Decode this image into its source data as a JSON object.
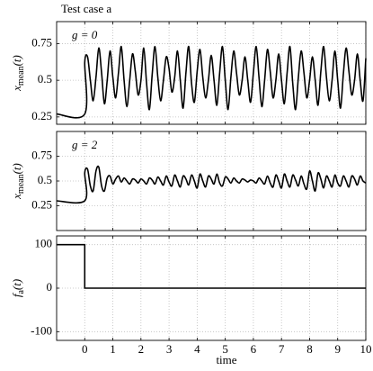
{
  "title": "Test case a",
  "chart_data": [
    {
      "type": "line",
      "annotation": "g = 0",
      "ylabel": {
        "base": "x",
        "sub": "mean",
        "rest": "(t)"
      },
      "xlim": [
        -1,
        10
      ],
      "xticks": [
        0,
        1,
        2,
        3,
        4,
        5,
        6,
        7,
        8,
        9,
        10
      ],
      "show_xtick_labels": false,
      "ylim": [
        0.2,
        0.9
      ],
      "yticks": [
        0.25,
        0.5,
        0.75
      ],
      "grid": true,
      "interpolation": "smooth",
      "x": [
        -1,
        0,
        0,
        0.1,
        0.2,
        0.3,
        0.4,
        0.5,
        0.6,
        0.7,
        0.8,
        0.9,
        1,
        1.1,
        1.2,
        1.3,
        1.4,
        1.5,
        1.6,
        1.7,
        1.8,
        1.9,
        2,
        2.1,
        2.2,
        2.3,
        2.4,
        2.5,
        2.6,
        2.7,
        2.8,
        2.9,
        3,
        3.1,
        3.2,
        3.3,
        3.4,
        3.5,
        3.6,
        3.7,
        3.8,
        3.9,
        4,
        4.1,
        4.2,
        4.3,
        4.4,
        4.5,
        4.6,
        4.7,
        4.8,
        4.9,
        5,
        5.1,
        5.2,
        5.3,
        5.4,
        5.5,
        5.6,
        5.7,
        5.8,
        5.9,
        6,
        6.1,
        6.2,
        6.3,
        6.4,
        6.5,
        6.6,
        6.7,
        6.8,
        6.9,
        7,
        7.1,
        7.2,
        7.3,
        7.4,
        7.5,
        7.6,
        7.7,
        7.8,
        7.9,
        8,
        8.1,
        8.2,
        8.3,
        8.4,
        8.5,
        8.6,
        8.7,
        8.8,
        8.9,
        9,
        9.1,
        9.2,
        9.3,
        9.4,
        9.5,
        9.6,
        9.7,
        9.8,
        9.9,
        10
      ],
      "series": [
        {
          "color": "#000000",
          "values": [
            0.27,
            0.27,
            0.62,
            0.66,
            0.5,
            0.36,
            0.52,
            0.72,
            0.55,
            0.34,
            0.5,
            0.7,
            0.52,
            0.38,
            0.55,
            0.73,
            0.5,
            0.32,
            0.5,
            0.68,
            0.56,
            0.4,
            0.5,
            0.72,
            0.48,
            0.3,
            0.54,
            0.73,
            0.52,
            0.36,
            0.5,
            0.66,
            0.58,
            0.42,
            0.52,
            0.7,
            0.5,
            0.31,
            0.55,
            0.73,
            0.48,
            0.35,
            0.56,
            0.71,
            0.52,
            0.38,
            0.5,
            0.67,
            0.5,
            0.33,
            0.55,
            0.73,
            0.5,
            0.3,
            0.52,
            0.7,
            0.55,
            0.4,
            0.5,
            0.66,
            0.5,
            0.35,
            0.55,
            0.73,
            0.52,
            0.32,
            0.5,
            0.71,
            0.56,
            0.38,
            0.5,
            0.68,
            0.5,
            0.34,
            0.55,
            0.73,
            0.48,
            0.3,
            0.52,
            0.7,
            0.55,
            0.38,
            0.5,
            0.66,
            0.5,
            0.33,
            0.56,
            0.73,
            0.52,
            0.36,
            0.5,
            0.7,
            0.5,
            0.31,
            0.54,
            0.72,
            0.56,
            0.4,
            0.5,
            0.68,
            0.5,
            0.36,
            0.65
          ]
        }
      ]
    },
    {
      "type": "line",
      "annotation": "g = 2",
      "ylabel": {
        "base": "x",
        "sub": "mean",
        "rest": "(t)"
      },
      "xlim": [
        -1,
        10
      ],
      "xticks": [
        0,
        1,
        2,
        3,
        4,
        5,
        6,
        7,
        8,
        9,
        10
      ],
      "show_xtick_labels": false,
      "ylim": [
        0,
        1
      ],
      "yticks": [
        0.25,
        0.5,
        0.75
      ],
      "grid": true,
      "interpolation": "smooth",
      "x": [
        -1,
        0,
        0,
        0.1,
        0.2,
        0.3,
        0.4,
        0.5,
        0.6,
        0.7,
        0.8,
        0.9,
        1,
        1.1,
        1.2,
        1.3,
        1.4,
        1.5,
        1.6,
        1.7,
        1.8,
        1.9,
        2,
        2.1,
        2.2,
        2.3,
        2.4,
        2.5,
        2.6,
        2.7,
        2.8,
        2.9,
        3,
        3.1,
        3.2,
        3.3,
        3.4,
        3.5,
        3.6,
        3.7,
        3.8,
        3.9,
        4,
        4.1,
        4.2,
        4.3,
        4.4,
        4.5,
        4.6,
        4.7,
        4.8,
        4.9,
        5,
        5.1,
        5.2,
        5.3,
        5.4,
        5.5,
        5.6,
        5.7,
        5.8,
        5.9,
        6,
        6.1,
        6.2,
        6.3,
        6.4,
        6.5,
        6.6,
        6.7,
        6.8,
        6.9,
        7,
        7.1,
        7.2,
        7.3,
        7.4,
        7.5,
        7.6,
        7.7,
        7.8,
        7.9,
        8,
        8.1,
        8.2,
        8.3,
        8.4,
        8.5,
        8.6,
        8.7,
        8.8,
        8.9,
        9,
        9.1,
        9.2,
        9.3,
        9.4,
        9.5,
        9.6,
        9.7,
        9.8,
        9.9,
        10
      ],
      "series": [
        {
          "color": "#000000",
          "values": [
            0.3,
            0.3,
            0.58,
            0.62,
            0.45,
            0.4,
            0.6,
            0.64,
            0.45,
            0.4,
            0.53,
            0.55,
            0.47,
            0.52,
            0.55,
            0.49,
            0.53,
            0.5,
            0.47,
            0.52,
            0.51,
            0.48,
            0.52,
            0.5,
            0.47,
            0.53,
            0.51,
            0.47,
            0.54,
            0.5,
            0.46,
            0.55,
            0.49,
            0.45,
            0.56,
            0.5,
            0.44,
            0.55,
            0.52,
            0.46,
            0.56,
            0.5,
            0.43,
            0.57,
            0.5,
            0.44,
            0.55,
            0.52,
            0.47,
            0.57,
            0.48,
            0.45,
            0.54,
            0.52,
            0.48,
            0.53,
            0.5,
            0.48,
            0.52,
            0.51,
            0.49,
            0.51,
            0.5,
            0.48,
            0.53,
            0.5,
            0.47,
            0.55,
            0.48,
            0.44,
            0.56,
            0.5,
            0.43,
            0.57,
            0.5,
            0.44,
            0.56,
            0.51,
            0.45,
            0.55,
            0.47,
            0.42,
            0.6,
            0.5,
            0.4,
            0.58,
            0.52,
            0.43,
            0.55,
            0.5,
            0.44,
            0.56,
            0.48,
            0.45,
            0.55,
            0.5,
            0.44,
            0.55,
            0.52,
            0.46,
            0.55,
            0.5,
            0.48
          ]
        }
      ]
    },
    {
      "type": "line",
      "ylabel": {
        "base": "f",
        "sub": "a",
        "rest": "(t)"
      },
      "xlabel": "time",
      "xlim": [
        -1,
        10
      ],
      "xticks": [
        0,
        1,
        2,
        3,
        4,
        5,
        6,
        7,
        8,
        9,
        10
      ],
      "show_xtick_labels": true,
      "ylim": [
        -120,
        120
      ],
      "yticks": [
        -100,
        0,
        100
      ],
      "grid": true,
      "interpolation": "linear",
      "x": [
        -1,
        0,
        0,
        10
      ],
      "series": [
        {
          "color": "#000000",
          "values": [
            100,
            100,
            0,
            0
          ]
        }
      ]
    }
  ]
}
